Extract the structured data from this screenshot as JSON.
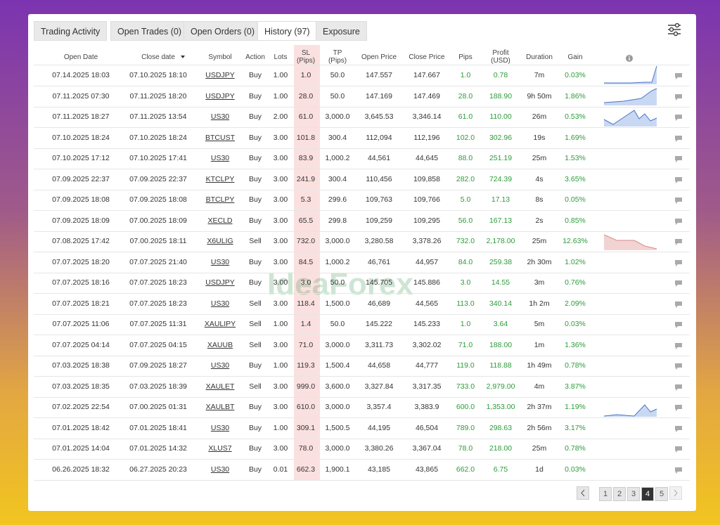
{
  "tabs": [
    "Trading Activity",
    "Open Trades (0)",
    "Open Orders (0)",
    "History (97)",
    "Exposure"
  ],
  "table": {
    "headers": [
      "Open Date",
      "Close date",
      "Symbol",
      "Action",
      "Lots",
      "SL\n(Pips)",
      "TP\n(Pips)",
      "Open Price",
      "Close Price",
      "Pips",
      "Profit\n(USD)",
      "Duration",
      "Gain"
    ],
    "rows": [
      [
        "07.14.2025 18:03",
        "07.10.2025 18:10",
        "USDJPY",
        "Buy",
        "1.00",
        "1.0",
        "50.0",
        "147.557",
        "147.667",
        "1.0",
        "0.78",
        "7m",
        "0.03%"
      ],
      [
        "07.11.2025 07:30",
        "07.11.2025 18:20",
        "USDJPY",
        "Buy",
        "1.00",
        "28.0",
        "50.0",
        "147.169",
        "147.469",
        "28.0",
        "188.90",
        "9h 50m",
        "1.86%"
      ],
      [
        "07.11.2025 18:27",
        "07.11.2025 13:54",
        "US30",
        "Buy",
        "2.00",
        "61.0",
        "3,000.0",
        "3,645.53",
        "3,346.14",
        "61.0",
        "110.00",
        "26m",
        "0.53%"
      ],
      [
        "07.10.2025 18:24",
        "07.10.2025 18:24",
        "BTCUST",
        "Buy",
        "3.00",
        "101.8",
        "300.4",
        "112,094",
        "112,196",
        "102.0",
        "302.96",
        "19s",
        "1.69%"
      ],
      [
        "07.10.2025 17:12",
        "07.10.2025 17:41",
        "US30",
        "Buy",
        "3.00",
        "83.9",
        "1,000.2",
        "44,561",
        "44,645",
        "88.0",
        "251.19",
        "25m",
        "1.53%"
      ],
      [
        "07.09.2025 22:37",
        "07.09.2025 22:37",
        "KTCLPY",
        "Buy",
        "3.00",
        "241.9",
        "300.4",
        "110,456",
        "109,858",
        "282.0",
        "724.39",
        "4s",
        "3.65%"
      ],
      [
        "07.09.2025 18:08",
        "07.09.2025 18:08",
        "BTCLPY",
        "Buy",
        "3.00",
        "5.3",
        "299.6",
        "109,763",
        "109,766",
        "5.0",
        "17.13",
        "8s",
        "0.05%"
      ],
      [
        "07.09.2025 18:09",
        "07.00.2025 18:09",
        "XECLD",
        "Buy",
        "3.00",
        "65.5",
        "299.8",
        "109,259",
        "109,295",
        "56.0",
        "167.13",
        "2s",
        "0.85%"
      ],
      [
        "07.08.2025 17:42",
        "07.00.2025 18:11",
        "X6ULIG",
        "Sell",
        "3.00",
        "732.0",
        "3,000.0",
        "3,280.58",
        "3,378.26",
        "732.0",
        "2,178.00",
        "25m",
        "12.63%"
      ],
      [
        "07.07.2025 18:20",
        "07.07.2025 21:40",
        "US30",
        "Buy",
        "3.00",
        "84.5",
        "1,000.2",
        "46,761",
        "44,957",
        "84.0",
        "259.38",
        "2h 30m",
        "1.02%"
      ],
      [
        "07.07.2025 18:16",
        "07.07.2025 18:23",
        "USDJPY",
        "Buy",
        "3.00",
        "3.0",
        "50.0",
        "145.705",
        "145.886",
        "3.0",
        "14.55",
        "3m",
        "0.76%"
      ],
      [
        "07.07.2025 18:21",
        "07.07.2025 18:23",
        "US30",
        "Sell",
        "3.00",
        "118.4",
        "1,500.0",
        "46,689",
        "44,565",
        "113.0",
        "340.14",
        "1h 2m",
        "2.09%"
      ],
      [
        "07.07.2025 11:06",
        "07.07.2025 11:31",
        "XAULIPY",
        "Sell",
        "1.00",
        "1.4",
        "50.0",
        "145.222",
        "145.233",
        "1.0",
        "3.64",
        "5m",
        "0.03%"
      ],
      [
        "07.07.2025 04:14",
        "07.07.2025 04:15",
        "XAUUB",
        "Sell",
        "3.00",
        "71.0",
        "3,000.0",
        "3,311.73",
        "3,302.02",
        "71.0",
        "188.00",
        "1m",
        "1.36%"
      ],
      [
        "07.03.2025 18:38",
        "07.09.2025 18:27",
        "US30",
        "Buy",
        "1.00",
        "119.3",
        "1,500.4",
        "44,658",
        "44,777",
        "119.0",
        "118.88",
        "1h 49m",
        "0.78%"
      ],
      [
        "07.03.2025 18:35",
        "07.03.2025 18:39",
        "XAULET",
        "Sell",
        "3.00",
        "999.0",
        "3,600.0",
        "3,327.84",
        "3,317.35",
        "733.0",
        "2,979.00",
        "4m",
        "3.87%"
      ],
      [
        "07.02.2025 22:54",
        "07.00.2025 01:31",
        "XAULBT",
        "Buy",
        "3.00",
        "610.0",
        "3,000.0",
        "3,357.4",
        "3,383.9",
        "600.0",
        "1,353.00",
        "2h 37m",
        "1.19%"
      ],
      [
        "07.01.2025 18:42",
        "07.01.2025 18:41",
        "US30",
        "Buy",
        "1.00",
        "309.1",
        "1,500.5",
        "44,195",
        "46,504",
        "789.0",
        "298.63",
        "2h 56m",
        "3.17%"
      ],
      [
        "07.01.2025 14:04",
        "07.01.2025 14:32",
        "XLUS7",
        "Buy",
        "3.00",
        "78.0",
        "3,000.0",
        "3,380.26",
        "3,367.04",
        "78.0",
        "218.00",
        "25m",
        "0.78%"
      ],
      [
        "06.26.2025 18:32",
        "06.27.2025 20:23",
        "US30",
        "Buy",
        "0.01",
        "662.3",
        "1,900.1",
        "43,185",
        "43,865",
        "662.0",
        "6.75",
        "1d",
        "0.03%"
      ]
    ]
  },
  "pagination": [
    "1",
    "2",
    "3",
    "4",
    "5"
  ],
  "watermark": "IdeaForex"
}
